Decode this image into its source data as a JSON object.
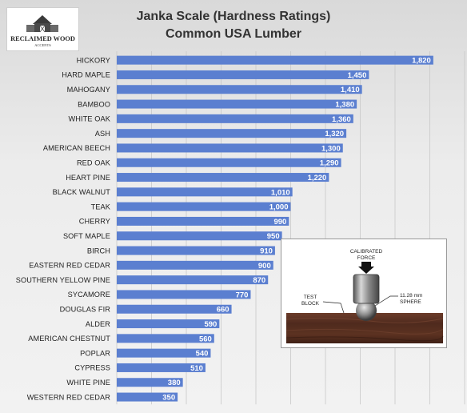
{
  "logo": {
    "line1": "RECLAIMED WOOD",
    "line2": "ACCENTS"
  },
  "title": {
    "line1": "Janka Scale (Hardness Ratings)",
    "line2": "Common USA Lumber"
  },
  "chart_data": {
    "type": "bar",
    "orientation": "horizontal",
    "title": "Janka Scale (Hardness Ratings) Common USA Lumber",
    "categories": [
      "HICKORY",
      "HARD MAPLE",
      "MAHOGANY",
      "BAMBOO",
      "WHITE OAK",
      "ASH",
      "AMERICAN BEECH",
      "RED OAK",
      "HEART PINE",
      "BLACK WALNUT",
      "TEAK",
      "CHERRY",
      "SOFT MAPLE",
      "BIRCH",
      "EASTERN RED CEDAR",
      "SOUTHERN YELLOW PINE",
      "SYCAMORE",
      "DOUGLAS FIR",
      "ALDER",
      "AMERICAN CHESTNUT",
      "POPLAR",
      "CYPRESS",
      "WHITE PINE",
      "WESTERN RED CEDAR"
    ],
    "values": [
      1820,
      1450,
      1410,
      1380,
      1360,
      1320,
      1300,
      1290,
      1220,
      1010,
      1000,
      990,
      950,
      910,
      900,
      870,
      770,
      660,
      590,
      560,
      540,
      510,
      380,
      350
    ],
    "value_labels": [
      "1,820",
      "1,450",
      "1,410",
      "1,380",
      "1,360",
      "1,320",
      "1,300",
      "1,290",
      "1,220",
      "1,010",
      "1,000",
      "990",
      "950",
      "910",
      "900",
      "870",
      "770",
      "660",
      "590",
      "560",
      "540",
      "510",
      "380",
      "350"
    ],
    "xlim": [
      0,
      2000
    ],
    "grid": true,
    "bar_color": "#5b7fd0",
    "data_labels": "inside-end"
  },
  "inset": {
    "force_line1": "CALIBRATED",
    "force_line2": "FORCE",
    "block_line1": "TEST",
    "block_line2": "BLOCK",
    "sphere_line1": "11.28 mm",
    "sphere_line2": "SPHERE"
  }
}
